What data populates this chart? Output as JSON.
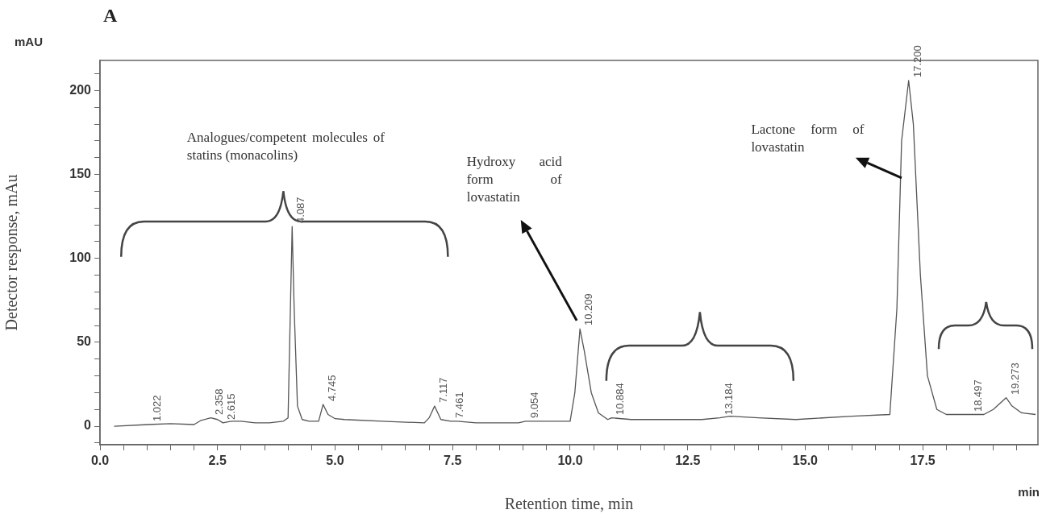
{
  "chart_data": {
    "type": "line",
    "title": "A",
    "xlabel": "Retention time, min",
    "ylabel": "Detector response, mAu",
    "xlim": [
      0,
      19.95
    ],
    "ylim": [
      -11,
      218
    ],
    "xticks": [
      {
        "value": 0,
        "label": "0.0"
      },
      {
        "value": 0.5,
        "label": null
      },
      {
        "value": 1,
        "label": null
      },
      {
        "value": 1.5,
        "label": null
      },
      {
        "value": 2,
        "label": null
      },
      {
        "value": 2.5,
        "label": "2.5"
      },
      {
        "value": 3,
        "label": null
      },
      {
        "value": 3.5,
        "label": null
      },
      {
        "value": 4,
        "label": null
      },
      {
        "value": 4.5,
        "label": null
      },
      {
        "value": 5,
        "label": "5.0"
      },
      {
        "value": 5.5,
        "label": null
      },
      {
        "value": 6,
        "label": null
      },
      {
        "value": 6.5,
        "label": null
      },
      {
        "value": 7,
        "label": null
      },
      {
        "value": 7.5,
        "label": "7.5"
      },
      {
        "value": 8,
        "label": null
      },
      {
        "value": 8.5,
        "label": null
      },
      {
        "value": 9,
        "label": null
      },
      {
        "value": 9.5,
        "label": null
      },
      {
        "value": 10,
        "label": "10.0"
      },
      {
        "value": 10.5,
        "label": null
      },
      {
        "value": 11,
        "label": null
      },
      {
        "value": 11.5,
        "label": null
      },
      {
        "value": 12,
        "label": null
      },
      {
        "value": 12.5,
        "label": "12.5"
      },
      {
        "value": 13,
        "label": null
      },
      {
        "value": 13.5,
        "label": null
      },
      {
        "value": 14,
        "label": null
      },
      {
        "value": 14.5,
        "label": null
      },
      {
        "value": 15,
        "label": "15.0"
      },
      {
        "value": 15.5,
        "label": null
      },
      {
        "value": 16,
        "label": null
      },
      {
        "value": 16.5,
        "label": null
      },
      {
        "value": 17,
        "label": null
      },
      {
        "value": 17.5,
        "label": "17.5"
      },
      {
        "value": 18,
        "label": null
      },
      {
        "value": 18.5,
        "label": null
      },
      {
        "value": 19,
        "label": null
      },
      {
        "value": 19.5,
        "label": null
      }
    ],
    "yticks": [
      {
        "value": -10,
        "label": null
      },
      0,
      {
        "value": 10,
        "label": null
      },
      {
        "value": 20,
        "label": null
      },
      {
        "value": 30,
        "label": null
      },
      {
        "value": 40,
        "label": null
      },
      50,
      {
        "value": 60,
        "label": null
      },
      {
        "value": 70,
        "label": null
      },
      {
        "value": 80,
        "label": null
      },
      {
        "value": 90,
        "label": null
      },
      100,
      {
        "value": 110,
        "label": null
      },
      {
        "value": 120,
        "label": null
      },
      {
        "value": 130,
        "label": null
      },
      {
        "value": 140,
        "label": null
      },
      150,
      {
        "value": 160,
        "label": null
      },
      {
        "value": 170,
        "label": null
      },
      {
        "value": 180,
        "label": null
      },
      {
        "value": 190,
        "label": null
      },
      200,
      {
        "value": 210,
        "label": null
      }
    ],
    "grid": false,
    "legend": false,
    "marker": "none",
    "line_style": "solid",
    "series": [
      {
        "color": "#555555",
        "x": [
          0.3,
          1.022,
          1.5,
          2.0,
          2.15,
          2.358,
          2.5,
          2.615,
          2.7,
          2.8,
          3.0,
          3.3,
          3.6,
          3.9,
          4.0,
          4.05,
          4.087,
          4.13,
          4.2,
          4.3,
          4.45,
          4.65,
          4.745,
          4.85,
          5.0,
          5.2,
          6.0,
          6.9,
          7.0,
          7.117,
          7.25,
          7.461,
          7.6,
          8.0,
          8.9,
          9.054,
          9.1,
          9.5,
          10.0,
          10.1,
          10.209,
          10.3,
          10.45,
          10.6,
          10.8,
          10.884,
          11.3,
          12.0,
          12.8,
          13.184,
          13.4,
          14.0,
          14.8,
          16.0,
          16.8,
          16.95,
          17.05,
          17.2,
          17.3,
          17.45,
          17.6,
          17.8,
          18.0,
          18.497,
          18.8,
          19.0,
          19.273,
          19.4,
          19.6,
          19.9
        ],
        "values": [
          0,
          1,
          1.5,
          1,
          3.5,
          5,
          4,
          2,
          2.5,
          3,
          3,
          2,
          2,
          3,
          5,
          70,
          119,
          70,
          12,
          4,
          3,
          3,
          13,
          7,
          4.5,
          4,
          3,
          2,
          5,
          12,
          4,
          3,
          3,
          2,
          2,
          3,
          3,
          3,
          3,
          20,
          58,
          45,
          20,
          8,
          4,
          5,
          4,
          4,
          4,
          5,
          6,
          5,
          4,
          6,
          7,
          70,
          170,
          206,
          180,
          90,
          30,
          10,
          7,
          7,
          7,
          10,
          17,
          12,
          8,
          7
        ]
      }
    ],
    "annotations": [
      "mAU",
      "min",
      "Analogues/competent molecules of statins (monacolins)",
      "Hydroxy acid form of lovastatin",
      "Lactone form of lovastatin",
      {
        "text": "1.022",
        "x": 1.022,
        "y": 1
      },
      {
        "text": "2.358",
        "x": 2.358,
        "y": 5
      },
      {
        "text": "2.615",
        "x": 2.615,
        "y": 2
      },
      {
        "text": "4.087",
        "x": 4.087,
        "y": 119
      },
      {
        "text": "4.745",
        "x": 4.745,
        "y": 13
      },
      {
        "text": "7.117",
        "x": 7.117,
        "y": 12
      },
      {
        "text": "7.461",
        "x": 7.461,
        "y": 3
      },
      {
        "text": "9.054",
        "x": 9.054,
        "y": 3
      },
      {
        "text": "10.209",
        "x": 10.209,
        "y": 58
      },
      {
        "text": "10.884",
        "x": 10.884,
        "y": 5
      },
      {
        "text": "13.184",
        "x": 13.184,
        "y": 5
      },
      {
        "text": "17.200",
        "x": 17.2,
        "y": 206
      },
      {
        "text": "18.497",
        "x": 18.497,
        "y": 7
      },
      {
        "text": "19.273",
        "x": 19.273,
        "y": 17
      }
    ]
  }
}
